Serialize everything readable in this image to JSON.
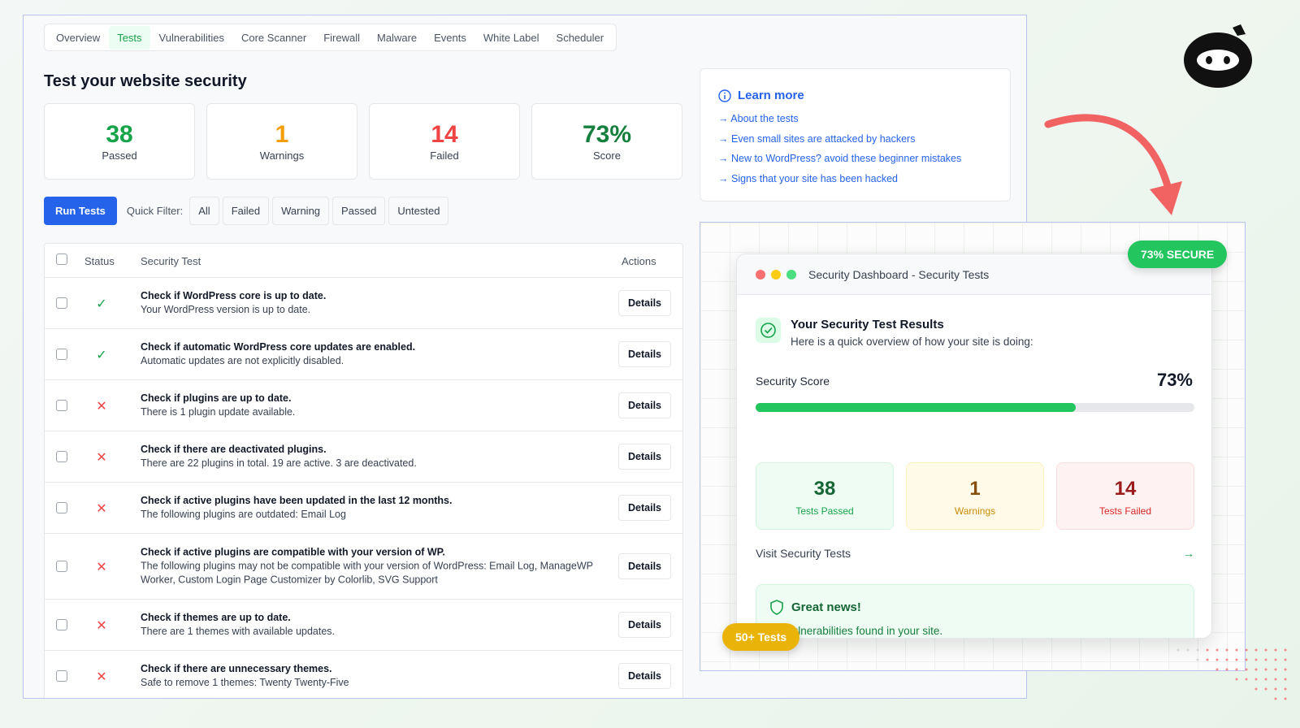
{
  "tabs": [
    "Overview",
    "Tests",
    "Vulnerabilities",
    "Core Scanner",
    "Firewall",
    "Malware",
    "Events",
    "White Label",
    "Scheduler"
  ],
  "active_tab": "Tests",
  "page_title": "Test your website security",
  "stats": [
    {
      "value": "38",
      "label": "Passed",
      "color": "#16a34a"
    },
    {
      "value": "1",
      "label": "Warnings",
      "color": "#f59e0b"
    },
    {
      "value": "14",
      "label": "Failed",
      "color": "#ef4444"
    },
    {
      "value": "73%",
      "label": "Score",
      "color": "#15803d"
    }
  ],
  "toolbar": {
    "run_label": "Run Tests",
    "quick_filter_label": "Quick Filter:",
    "filters": [
      "All",
      "Failed",
      "Warning",
      "Passed",
      "Untested"
    ]
  },
  "table": {
    "headers": {
      "status": "Status",
      "test": "Security Test",
      "actions": "Actions"
    },
    "details_label": "Details",
    "rows": [
      {
        "status": "pass",
        "title": "Check if WordPress core is up to date.",
        "desc": "Your WordPress version is up to date."
      },
      {
        "status": "pass",
        "title": "Check if automatic WordPress core updates are enabled.",
        "desc": "Automatic updates are not explicitly disabled."
      },
      {
        "status": "fail",
        "title": "Check if plugins are up to date.",
        "desc": "There is 1 plugin update available."
      },
      {
        "status": "fail",
        "title": "Check if there are deactivated plugins.",
        "desc": "There are 22 plugins in total. 19 are active. 3 are deactivated."
      },
      {
        "status": "fail",
        "title": "Check if active plugins have been updated in the last 12 months.",
        "desc": "The following plugins are outdated: Email Log"
      },
      {
        "status": "fail",
        "title": "Check if active plugins are compatible with your version of WP.",
        "desc": "The following plugins may not be compatible with your version of WordPress: Email Log, ManageWP Worker, Custom Login Page Customizer by Colorlib, SVG Support"
      },
      {
        "status": "fail",
        "title": "Check if themes are up to date.",
        "desc": "There are 1 themes with available updates."
      },
      {
        "status": "fail",
        "title": "Check if there are unnecessary themes.",
        "desc": "Safe to remove 1 themes: Twenty Twenty-Five"
      }
    ]
  },
  "learn_more": {
    "title": "Learn more",
    "links": [
      "About the tests",
      "Even small sites are attacked by hackers",
      "New to WordPress? avoid these beginner mistakes",
      "Signs that your site has been hacked"
    ]
  },
  "promo": {
    "badge_secure": "73% SECURE",
    "badge_tests": "50+ Tests",
    "window_title": "Security Dashboard - Security Tests",
    "heading": "Your Security Test Results",
    "subheading": "Here is a quick overview of how your site is doing:",
    "score_label": "Security Score",
    "score_value": "73%",
    "score_percent": 73,
    "cards": [
      {
        "value": "38",
        "label": "Tests Passed"
      },
      {
        "value": "1",
        "label": "Warnings"
      },
      {
        "value": "14",
        "label": "Tests Failed"
      }
    ],
    "visit_label": "Visit Security Tests",
    "news_title": "Great news!",
    "news_text": "No vulnerabilities found in your site."
  }
}
